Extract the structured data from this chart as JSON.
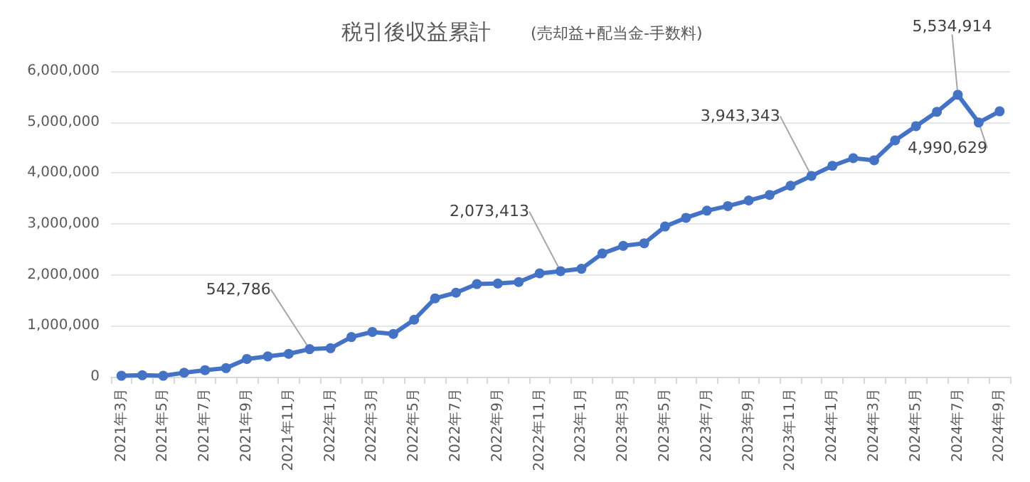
{
  "chart_data": {
    "type": "line",
    "title": "税引後収益累計",
    "subtitle": "(売却益+配当金-手数料)",
    "categories": [
      "2021年3月",
      null,
      "2021年5月",
      null,
      "2021年7月",
      null,
      "2021年9月",
      null,
      "2021年11月",
      null,
      "2022年1月",
      null,
      "2022年3月",
      null,
      "2022年5月",
      null,
      "2022年7月",
      null,
      "2022年9月",
      null,
      "2022年11月",
      null,
      "2023年1月",
      null,
      "2023年3月",
      null,
      "2023年5月",
      null,
      "2023年7月",
      null,
      "2023年9月",
      null,
      "2023年11月",
      null,
      "2024年1月",
      null,
      "2024年3月",
      null,
      "2024年5月",
      null,
      "2024年7月",
      null,
      "2024年9月"
    ],
    "series": [
      {
        "color": "#4472c4",
        "values": [
          20000,
          30000,
          20000,
          80000,
          130000,
          170000,
          350000,
          400000,
          450000,
          542786,
          560000,
          780000,
          880000,
          840000,
          1120000,
          1540000,
          1650000,
          1820000,
          1830000,
          1860000,
          2030000,
          2073413,
          2120000,
          2420000,
          2570000,
          2620000,
          2950000,
          3120000,
          3260000,
          3350000,
          3460000,
          3570000,
          3750000,
          3943343,
          4140000,
          4290000,
          4250000,
          4640000,
          4920000,
          5200000,
          5534914,
          4990629,
          5210000
        ],
        "value_labels": [
          null,
          null,
          null,
          null,
          null,
          null,
          null,
          null,
          null,
          "542,786",
          null,
          null,
          null,
          null,
          null,
          null,
          null,
          null,
          null,
          null,
          null,
          "2,073,413",
          null,
          null,
          null,
          null,
          null,
          null,
          null,
          null,
          null,
          null,
          null,
          "3,943,343",
          null,
          null,
          null,
          null,
          null,
          null,
          "5,534,914",
          "4,990,629",
          null
        ]
      }
    ],
    "ylim": [
      0,
      6000000
    ],
    "yticks": [
      0,
      {
        "value": 1000000,
        "label": "1,000,000"
      },
      {
        "value": 2000000,
        "label": "2,000,000"
      },
      {
        "value": 3000000,
        "label": "3,000,000"
      },
      {
        "value": 4000000,
        "label": "4,000,000"
      },
      {
        "value": 5000000,
        "label": "5,000,000"
      },
      {
        "value": 6000000,
        "label": "6,000,000"
      }
    ],
    "grid": "y",
    "marker": "circle",
    "line_style": "solid"
  }
}
